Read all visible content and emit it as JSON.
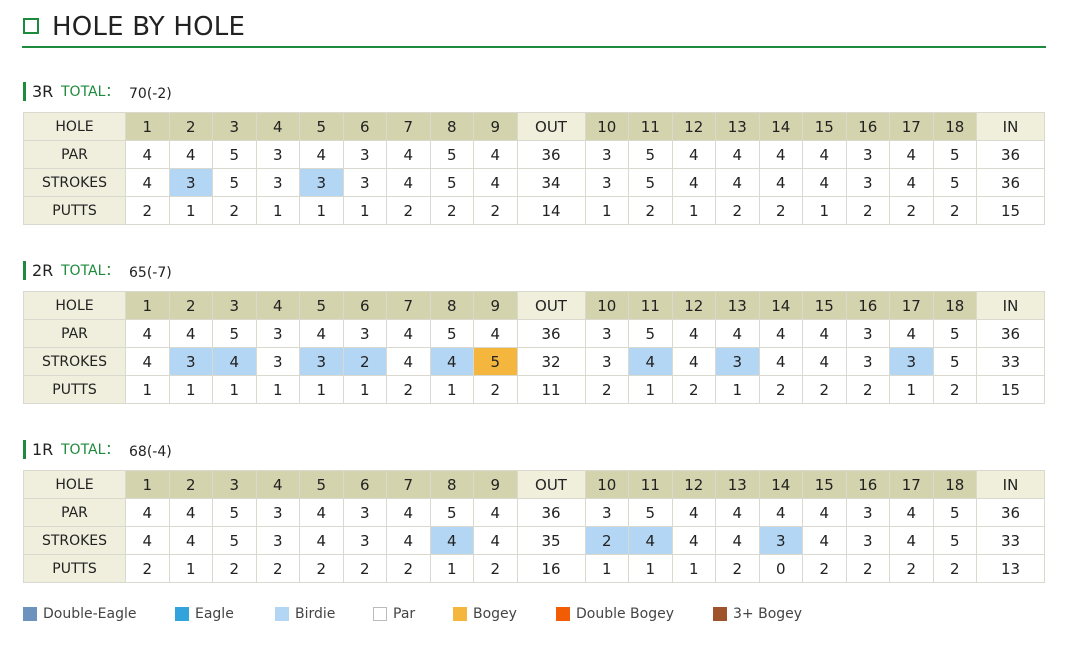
{
  "title": "HOLE BY HOLE",
  "colors": {
    "double_eagle": "#6b93bd",
    "eagle": "#33a3dc",
    "birdie": "#b3d6f5",
    "par": "#ffffff",
    "bogey": "#f5b63e",
    "double_bogey": "#f25c05",
    "triple_plus_bogey": "#a0522d",
    "accent": "#1e8a3c"
  },
  "row_labels": [
    "HOLE",
    "PAR",
    "STROKES",
    "PUTTS"
  ],
  "holes": [
    "1",
    "2",
    "3",
    "4",
    "5",
    "6",
    "7",
    "8",
    "9",
    "OUT",
    "10",
    "11",
    "12",
    "13",
    "14",
    "15",
    "16",
    "17",
    "18",
    "IN"
  ],
  "rounds": [
    {
      "label": "3R",
      "total_label": "TOTAL：",
      "total_value": "70(-2)",
      "par": [
        "4",
        "4",
        "5",
        "3",
        "4",
        "3",
        "4",
        "5",
        "4",
        "36",
        "3",
        "5",
        "4",
        "4",
        "4",
        "4",
        "3",
        "4",
        "5",
        "36"
      ],
      "strokes": [
        "4",
        "3",
        "5",
        "3",
        "3",
        "3",
        "4",
        "5",
        "4",
        "34",
        "3",
        "5",
        "4",
        "4",
        "4",
        "4",
        "3",
        "4",
        "5",
        "36"
      ],
      "putts": [
        "2",
        "1",
        "2",
        "1",
        "1",
        "1",
        "2",
        "2",
        "2",
        "14",
        "1",
        "2",
        "1",
        "2",
        "2",
        "1",
        "2",
        "2",
        "2",
        "15"
      ]
    },
    {
      "label": "2R",
      "total_label": "TOTAL：",
      "total_value": "65(-7)",
      "par": [
        "4",
        "4",
        "5",
        "3",
        "4",
        "3",
        "4",
        "5",
        "4",
        "36",
        "3",
        "5",
        "4",
        "4",
        "4",
        "4",
        "3",
        "4",
        "5",
        "36"
      ],
      "strokes": [
        "4",
        "3",
        "4",
        "3",
        "3",
        "2",
        "4",
        "4",
        "5",
        "32",
        "3",
        "4",
        "4",
        "3",
        "4",
        "4",
        "3",
        "3",
        "5",
        "33"
      ],
      "putts": [
        "1",
        "1",
        "1",
        "1",
        "1",
        "1",
        "2",
        "1",
        "2",
        "11",
        "2",
        "1",
        "2",
        "1",
        "2",
        "2",
        "2",
        "1",
        "2",
        "15"
      ]
    },
    {
      "label": "1R",
      "total_label": "TOTAL：",
      "total_value": "68(-4)",
      "par": [
        "4",
        "4",
        "5",
        "3",
        "4",
        "3",
        "4",
        "5",
        "4",
        "36",
        "3",
        "5",
        "4",
        "4",
        "4",
        "4",
        "3",
        "4",
        "5",
        "36"
      ],
      "strokes": [
        "4",
        "4",
        "5",
        "3",
        "4",
        "3",
        "4",
        "4",
        "4",
        "35",
        "2",
        "4",
        "4",
        "4",
        "3",
        "4",
        "3",
        "4",
        "5",
        "33"
      ],
      "putts": [
        "2",
        "1",
        "2",
        "2",
        "2",
        "2",
        "2",
        "1",
        "2",
        "16",
        "1",
        "1",
        "1",
        "2",
        "0",
        "2",
        "2",
        "2",
        "2",
        "13"
      ]
    }
  ],
  "legend": [
    {
      "key": "double_eagle",
      "label": "Double-Eagle"
    },
    {
      "key": "eagle",
      "label": "Eagle"
    },
    {
      "key": "birdie",
      "label": "Birdie"
    },
    {
      "key": "par",
      "label": "Par"
    },
    {
      "key": "bogey",
      "label": "Bogey"
    },
    {
      "key": "double_bogey",
      "label": "Double Bogey"
    },
    {
      "key": "triple_plus_bogey",
      "label": "3+ Bogey"
    }
  ]
}
